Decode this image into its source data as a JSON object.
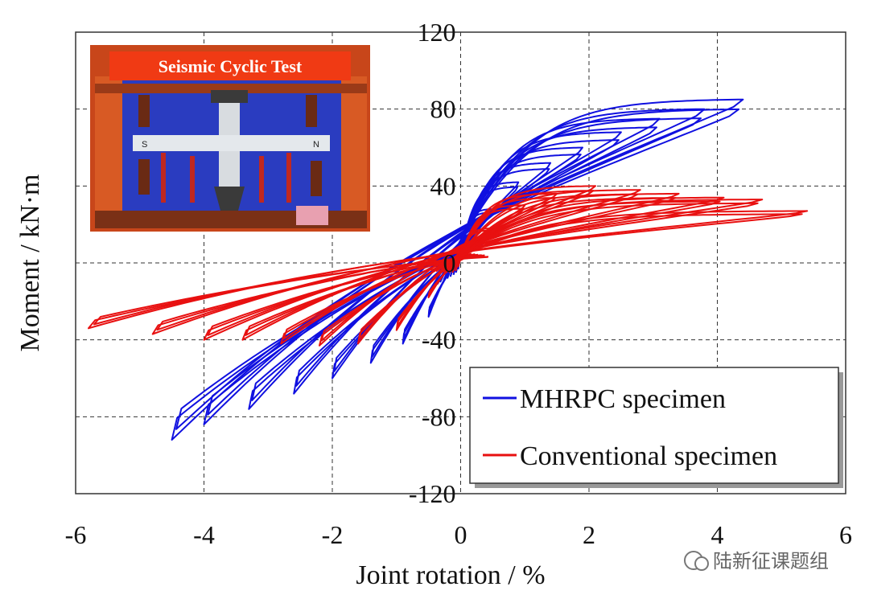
{
  "chart_data": {
    "type": "line",
    "xlabel": "Joint rotation / %",
    "ylabel": "Moment / kN·m",
    "xlim": [
      -6,
      6
    ],
    "ylim": [
      -120,
      120
    ],
    "xticks": [
      "-6",
      "-4",
      "-2",
      "0",
      "2",
      "4",
      "6"
    ],
    "yticks": [
      "-120",
      "-80",
      "-40",
      "0",
      "40",
      "80",
      "120"
    ],
    "grid": "dashed",
    "legend": "bottom-right",
    "series": [
      {
        "name": "MHRPC specimen",
        "color": "#1010e0",
        "cycles": [
          {
            "xmax": 0.5,
            "ymax": 28,
            "xmin": -0.5,
            "ymin": -28
          },
          {
            "xmax": 0.9,
            "ymax": 42,
            "xmin": -0.9,
            "ymin": -42
          },
          {
            "xmax": 1.4,
            "ymax": 52,
            "xmin": -1.4,
            "ymin": -52
          },
          {
            "xmax": 1.9,
            "ymax": 60,
            "xmin": -2.0,
            "ymin": -60
          },
          {
            "xmax": 2.5,
            "ymax": 68,
            "xmin": -2.6,
            "ymin": -68
          },
          {
            "xmax": 3.1,
            "ymax": 75,
            "xmin": -3.3,
            "ymin": -76
          },
          {
            "xmax": 3.8,
            "ymax": 80,
            "xmin": -4.0,
            "ymin": -84
          },
          {
            "xmax": 4.4,
            "ymax": 85,
            "xmin": -4.5,
            "ymin": -92
          }
        ]
      },
      {
        "name": "Conventional specimen",
        "color": "#e81010",
        "cycles": [
          {
            "xmax": 0.5,
            "ymax": 18,
            "xmin": -0.5,
            "ymin": -18
          },
          {
            "xmax": 1.0,
            "ymax": 30,
            "xmin": -1.0,
            "ymin": -35
          },
          {
            "xmax": 1.5,
            "ymax": 36,
            "xmin": -1.6,
            "ymin": -42
          },
          {
            "xmax": 2.1,
            "ymax": 40,
            "xmin": -2.2,
            "ymin": -43
          },
          {
            "xmax": 2.8,
            "ymax": 38,
            "xmin": -2.8,
            "ymin": -42
          },
          {
            "xmax": 3.4,
            "ymax": 36,
            "xmin": -3.4,
            "ymin": -40
          },
          {
            "xmax": 4.1,
            "ymax": 34,
            "xmin": -4.0,
            "ymin": -40
          },
          {
            "xmax": 4.7,
            "ymax": 33,
            "xmin": -4.8,
            "ymin": -37
          },
          {
            "xmax": 5.4,
            "ymax": 27,
            "xmin": -5.8,
            "ymin": -34
          }
        ]
      }
    ]
  },
  "inset": {
    "title": "Seismic Cyclic Test",
    "label_s": "S",
    "label_n": "N",
    "colors": {
      "frame": "#d0501e",
      "backdrop": "#2a3cc0",
      "banner": "#f03a14"
    }
  },
  "watermark": "陆新征课题组"
}
